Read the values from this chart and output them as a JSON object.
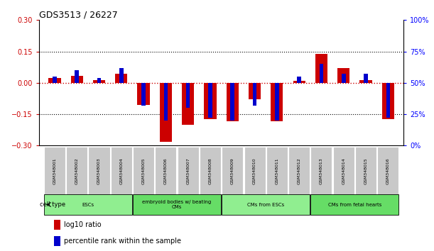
{
  "title": "GDS3513 / 26227",
  "samples": [
    "GSM348001",
    "GSM348002",
    "GSM348003",
    "GSM348004",
    "GSM348005",
    "GSM348006",
    "GSM348007",
    "GSM348008",
    "GSM348009",
    "GSM348010",
    "GSM348011",
    "GSM348012",
    "GSM348013",
    "GSM348014",
    "GSM348015",
    "GSM348016"
  ],
  "log10_ratio": [
    0.022,
    0.032,
    0.012,
    0.042,
    -0.105,
    -0.282,
    -0.2,
    -0.172,
    -0.182,
    -0.078,
    -0.182,
    0.01,
    0.14,
    0.072,
    0.012,
    -0.172
  ],
  "percentile_rank": [
    55,
    60,
    54,
    62,
    32,
    20,
    30,
    22,
    20,
    32,
    20,
    55,
    65,
    57,
    57,
    22
  ],
  "ylim_left": [
    -0.3,
    0.3
  ],
  "ylim_right": [
    0,
    100
  ],
  "yticks_left": [
    -0.3,
    -0.15,
    0,
    0.15,
    0.3
  ],
  "yticks_right": [
    0,
    25,
    50,
    75,
    100
  ],
  "groups": [
    {
      "label": "ESCs",
      "start": 0,
      "end": 3,
      "color": "#90EE90"
    },
    {
      "label": "embryoid bodies w/ beating\nCMs",
      "start": 4,
      "end": 7,
      "color": "#66DD66"
    },
    {
      "label": "CMs from ESCs",
      "start": 8,
      "end": 11,
      "color": "#90EE90"
    },
    {
      "label": "CMs from fetal hearts",
      "start": 12,
      "end": 15,
      "color": "#66DD66"
    }
  ],
  "bar_color_red": "#CC0000",
  "bar_color_blue": "#0000CC",
  "zero_line_color": "#CC0000",
  "dotted_line_color": "#000000",
  "bg_color": "#FFFFFF",
  "sample_box_color": "#C8C8C8",
  "legend_red_label": "log10 ratio",
  "legend_blue_label": "percentile rank within the sample",
  "red_bar_width": 0.55,
  "blue_bar_width": 0.18
}
